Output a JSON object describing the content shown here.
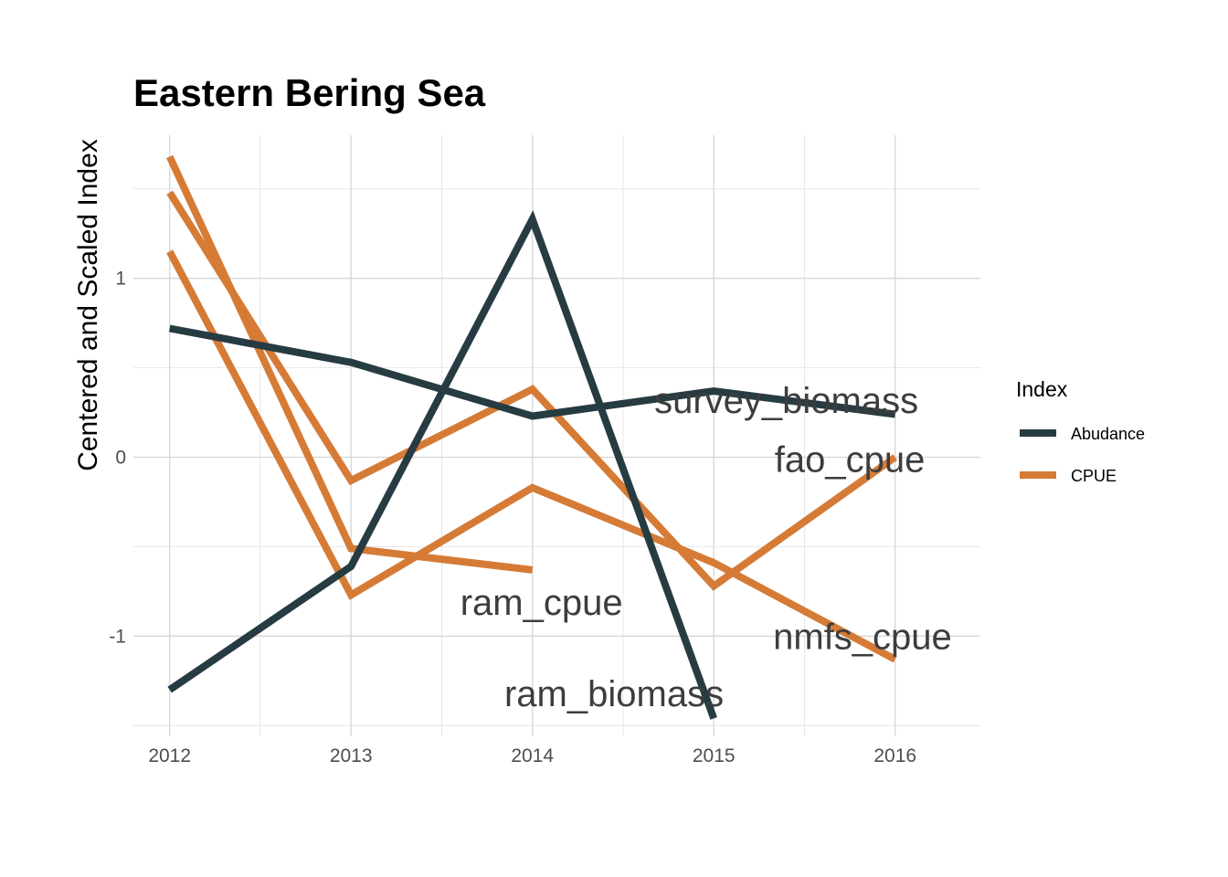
{
  "chart_data": {
    "type": "line",
    "title": "Eastern Bering Sea",
    "xlabel": "",
    "ylabel": "Centered and Scaled Index",
    "x": [
      2012,
      2013,
      2014,
      2015,
      2016
    ],
    "xlim": [
      2011.8,
      2016.47
    ],
    "ylim": [
      -1.56,
      1.8
    ],
    "x_ticks": [
      {
        "value": 2012,
        "label": "2012"
      },
      {
        "value": 2013,
        "label": "2013"
      },
      {
        "value": 2014,
        "label": "2014"
      },
      {
        "value": 2015,
        "label": "2015"
      },
      {
        "value": 2016,
        "label": "2016"
      }
    ],
    "x_minor": [
      2012.5,
      2013.5,
      2014.5,
      2015.5
    ],
    "y_ticks": [
      {
        "value": -1,
        "label": "-1"
      },
      {
        "value": 0,
        "label": "0"
      },
      {
        "value": 1,
        "label": "1"
      }
    ],
    "y_minor": [
      -1.5,
      -0.5,
      0.5,
      1.5
    ],
    "grid": true,
    "legend": {
      "title": "Index",
      "placement": "right",
      "entries": [
        {
          "label": "Abudance",
          "color": "#273b42"
        },
        {
          "label": "CPUE",
          "color": "#d57b36"
        }
      ]
    },
    "series": [
      {
        "label": "survey_biomass",
        "group": "Abudance",
        "color": "#273b42",
        "points": [
          [
            2012,
            0.72
          ],
          [
            2013,
            0.53
          ],
          [
            2014,
            0.23
          ],
          [
            2015,
            0.37
          ],
          [
            2016,
            0.24
          ]
        ],
        "label_at": [
          2015.4,
          0.32
        ]
      },
      {
        "label": "ram_biomass",
        "group": "Abudance",
        "color": "#273b42",
        "points": [
          [
            2012,
            -1.3
          ],
          [
            2013,
            -0.61
          ],
          [
            2014,
            1.33
          ],
          [
            2015,
            -1.46
          ]
        ],
        "label_at": [
          2014.45,
          -1.32
        ]
      },
      {
        "label": "fao_cpue",
        "group": "CPUE",
        "color": "#d57b36",
        "points": [
          [
            2012,
            1.48
          ],
          [
            2013,
            -0.13
          ],
          [
            2014,
            0.38
          ],
          [
            2015,
            -0.72
          ],
          [
            2016,
            0.0
          ]
        ],
        "label_at": [
          2015.75,
          -0.01
        ]
      },
      {
        "label": "nmfs_cpue",
        "group": "CPUE",
        "color": "#d57b36",
        "points": [
          [
            2012,
            1.15
          ],
          [
            2013,
            -0.77
          ],
          [
            2014,
            -0.17
          ],
          [
            2015,
            -0.59
          ],
          [
            2016,
            -1.13
          ]
        ],
        "label_at": [
          2015.82,
          -1.0
        ]
      },
      {
        "label": "ram_cpue",
        "group": "CPUE",
        "color": "#d57b36",
        "points": [
          [
            2012,
            1.68
          ],
          [
            2013,
            -0.51
          ],
          [
            2014,
            -0.63
          ]
        ],
        "label_at": [
          2014.05,
          -0.81
        ]
      }
    ]
  }
}
